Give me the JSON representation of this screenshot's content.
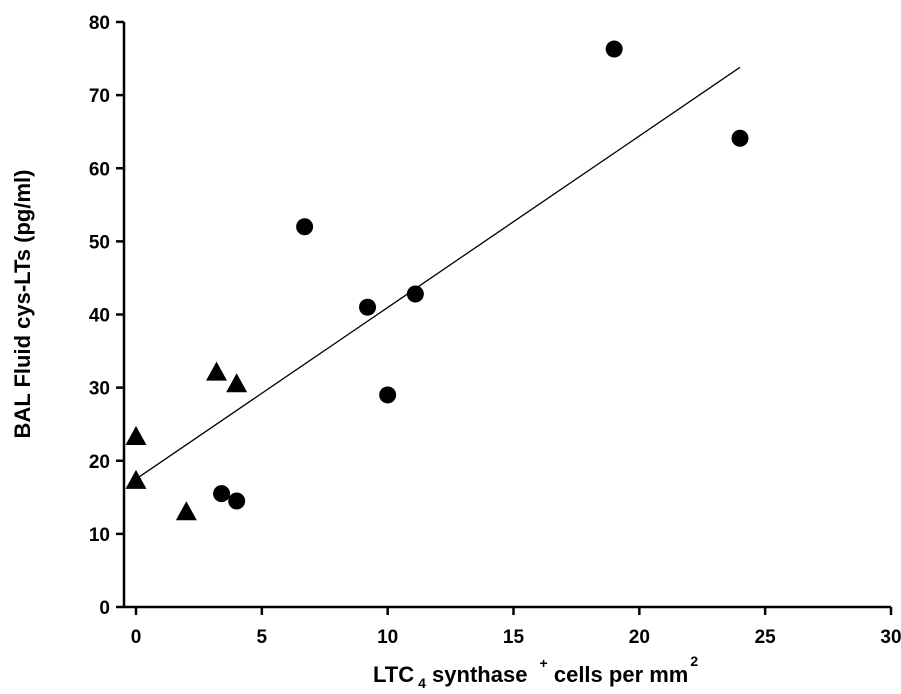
{
  "chart_data": {
    "type": "scatter",
    "title": "",
    "xlabel": {
      "parts": [
        "LTC",
        "4",
        " synthase ",
        "+",
        " cells per mm",
        "2"
      ]
    },
    "ylabel": "BAL Fluid cys-LTs (pg/ml)",
    "xlim": [
      0,
      30
    ],
    "ylim": [
      0,
      80
    ],
    "xticks": [
      "0",
      "5",
      "10",
      "15",
      "20",
      "25",
      "30"
    ],
    "yticks": [
      "0",
      "10",
      "20",
      "30",
      "40",
      "50",
      "60",
      "70",
      "80"
    ],
    "grid": false,
    "series": [
      {
        "marker": "circle",
        "color": "#000000",
        "points": [
          [
            3.4,
            15.5
          ],
          [
            4.0,
            14.5
          ],
          [
            6.7,
            52
          ],
          [
            9.2,
            41
          ],
          [
            10.0,
            29
          ],
          [
            11.1,
            42.8
          ],
          [
            19.0,
            76.3
          ],
          [
            24.0,
            64.1
          ]
        ]
      },
      {
        "marker": "triangle",
        "color": "#000000",
        "points": [
          [
            0,
            23.2
          ],
          [
            0,
            17.2
          ],
          [
            2.0,
            12.9
          ],
          [
            3.2,
            32
          ],
          [
            4.0,
            30.4
          ]
        ]
      }
    ],
    "regression_line": {
      "x": [
        0,
        24
      ],
      "y": [
        17.5,
        73.8
      ]
    }
  }
}
